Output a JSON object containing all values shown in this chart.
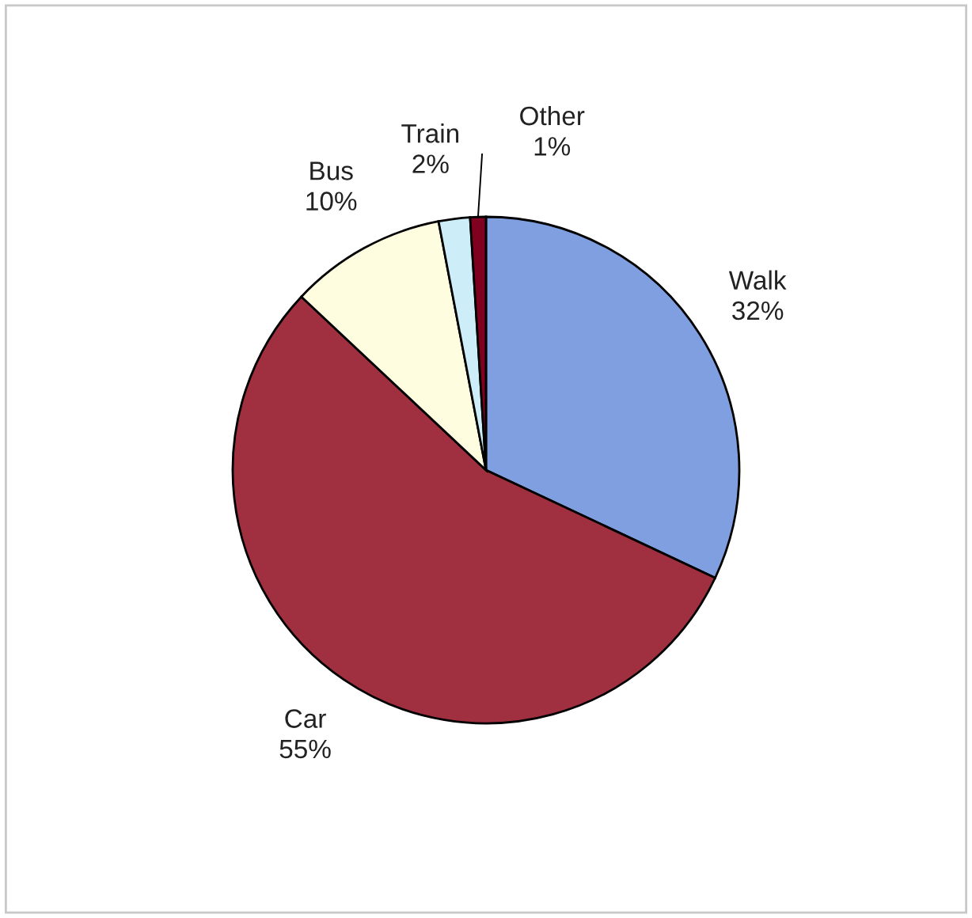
{
  "chart_data": {
    "type": "pie",
    "categories": [
      "Walk",
      "Car",
      "Bus",
      "Train",
      "Other"
    ],
    "values": [
      32,
      55,
      10,
      2,
      1
    ],
    "value_labels": [
      "32%",
      "55%",
      "10%",
      "2%",
      "1%"
    ],
    "colors": [
      "#7f9fe0",
      "#a0303f",
      "#fffde0",
      "#cdeef8",
      "#800020"
    ]
  }
}
